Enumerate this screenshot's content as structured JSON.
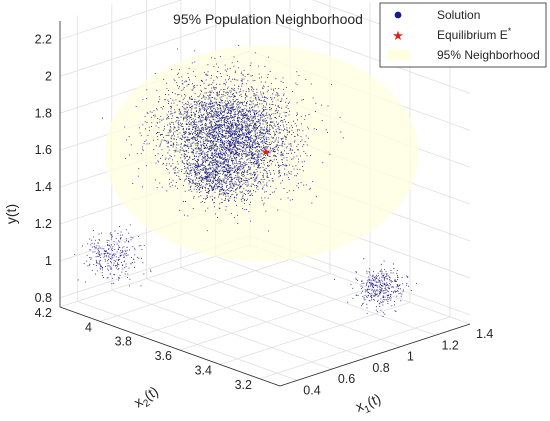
{
  "chart_data": {
    "type": "scatter",
    "projection": "3d",
    "title": "95% Population Neighborhood",
    "xlabel": "x",
    "xlabel_sub": "1",
    "xlabel_suffix": "(t)",
    "ylabel": "x",
    "ylabel_sub": "2",
    "ylabel_suffix": "(t)",
    "zlabel": "y(t)",
    "xlim": [
      0.3,
      1.4
    ],
    "ylim": [
      3.1,
      4.2
    ],
    "zlim": [
      0.75,
      2.3
    ],
    "x_ticks": [
      "0.4",
      "0.6",
      "0.8",
      "1",
      "1.2",
      "1.4"
    ],
    "y_ticks": [
      "3.2",
      "3.4",
      "3.6",
      "3.8",
      "4",
      "4.2"
    ],
    "z_ticks": [
      "0.8",
      "1",
      "1.2",
      "1.4",
      "1.6",
      "1.8",
      "2",
      "2.2"
    ],
    "grid": true,
    "legend_position": "top-right",
    "series": [
      {
        "name": "Solution",
        "marker": "point",
        "color": "#1a1a8c",
        "approx_count": 5000,
        "clusters": [
          {
            "center": [
              0.75,
              3.75,
              1.72
            ],
            "spread": [
              0.25,
              0.25,
              0.27
            ],
            "share": 0.75
          },
          {
            "center": [
              0.62,
              3.7,
              1.55
            ],
            "spread": [
              0.14,
              0.14,
              0.1
            ],
            "share": 0.12
          },
          {
            "center": [
              0.42,
              4.05,
              1.05
            ],
            "spread": [
              0.12,
              0.1,
              0.12
            ],
            "share": 0.06
          },
          {
            "center": [
              1.05,
              3.25,
              1.0
            ],
            "spread": [
              0.1,
              0.08,
              0.1
            ],
            "share": 0.07
          }
        ]
      },
      {
        "name": "Equilibrium E",
        "name_sup": "*",
        "marker": "star",
        "color": "#e0201b",
        "point": [
          0.82,
          3.62,
          1.66
        ]
      },
      {
        "name": "95% Neighborhood",
        "marker": "ellipsoid",
        "color": "#ffffe0",
        "opacity": 0.55
      }
    ]
  }
}
